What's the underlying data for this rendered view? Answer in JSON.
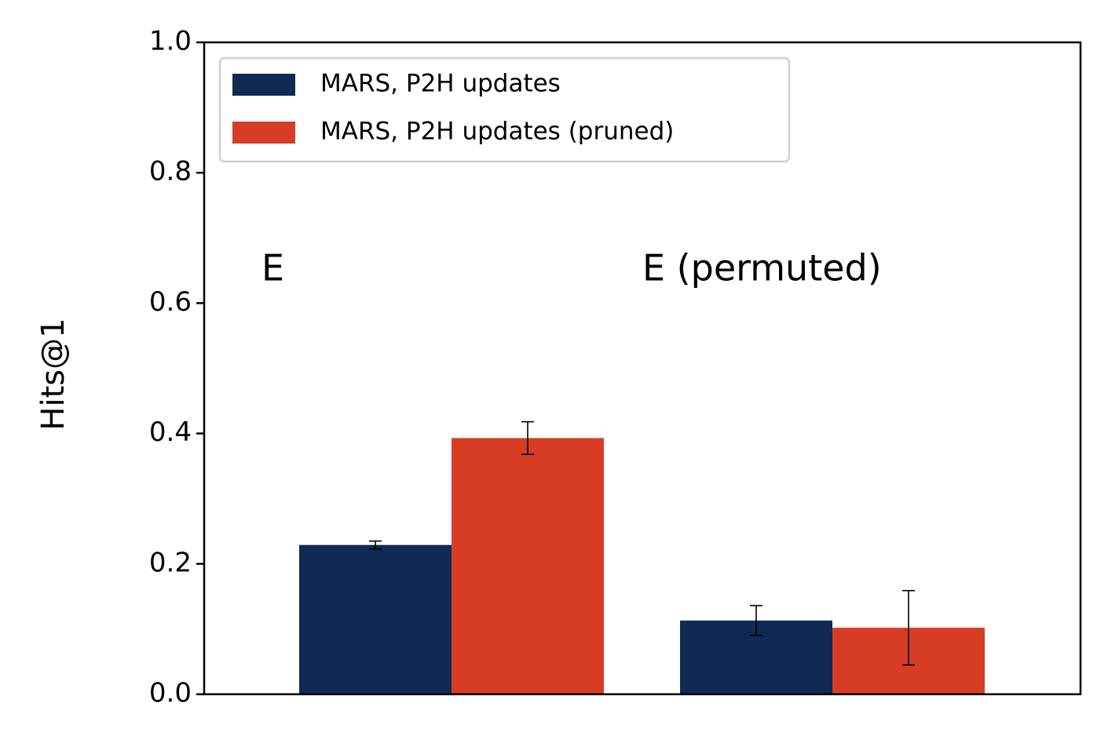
{
  "chart_data": {
    "type": "bar",
    "y_label": "Hits@1",
    "categories": [
      "E",
      "E (permuted)"
    ],
    "series": [
      {
        "name": "MARS, P2H updates",
        "color": "#102a54",
        "values": [
          0.229,
          0.113
        ],
        "errors": [
          0.006,
          0.023
        ]
      },
      {
        "name": "MARS, P2H updates (pruned)",
        "color": "#d73d25",
        "values": [
          0.393,
          0.102
        ],
        "errors": [
          0.025,
          0.057
        ]
      }
    ],
    "ylim": [
      0,
      1
    ],
    "yticks": [
      {
        "value": 0,
        "label": "0.0"
      },
      {
        "value": 0.2,
        "label": "0.2"
      },
      {
        "value": 0.4,
        "label": "0.4"
      },
      {
        "value": 0.6,
        "label": "0.6"
      },
      {
        "value": 0.8,
        "label": "0.8"
      },
      {
        "value": 1,
        "label": "1.0"
      }
    ],
    "legend": "upper left"
  }
}
